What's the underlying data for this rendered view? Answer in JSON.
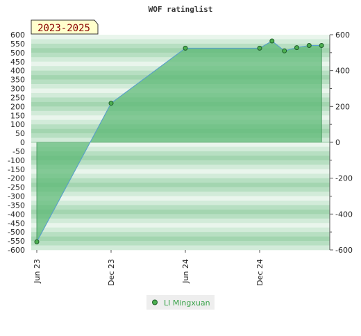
{
  "chart_data": {
    "type": "area",
    "title": "WOF ratinglist",
    "badge": "2023-2025",
    "x": [
      "2023-06-01",
      "2023-12-01",
      "2024-06-01",
      "2024-12-01",
      "2025-01-01",
      "2025-02-01",
      "2025-03-01",
      "2025-04-01",
      "2025-05-01"
    ],
    "x_tick_labels": [
      "Jun 23",
      "Dec 23",
      "Jun 24",
      "Dec 24"
    ],
    "series": [
      {
        "name": "LI Mingxuan",
        "values": [
          -555,
          218,
          525,
          525,
          565,
          510,
          528,
          540,
          540
        ],
        "color": "#3aa34a"
      }
    ],
    "y_left": {
      "ylim": [
        -600,
        600
      ],
      "ticks": [
        600,
        550,
        500,
        450,
        400,
        350,
        300,
        250,
        200,
        150,
        100,
        50,
        0,
        -50,
        -100,
        -150,
        -200,
        -250,
        -300,
        -350,
        -400,
        -450,
        -500,
        -550,
        -600
      ]
    },
    "y_right": {
      "ylim": [
        -600,
        600
      ],
      "ticks": [
        600,
        400,
        200,
        0,
        -200,
        -400,
        -600
      ]
    },
    "colors": {
      "fill": "#5cb874",
      "line": "#5a9fd4",
      "marker": "#4caf50",
      "band_dark": "#a9d8b5",
      "band_light": "#e6f4ea",
      "badge_bg": "#ffffcc"
    },
    "legend_position": "bottom-center",
    "grid": true
  }
}
